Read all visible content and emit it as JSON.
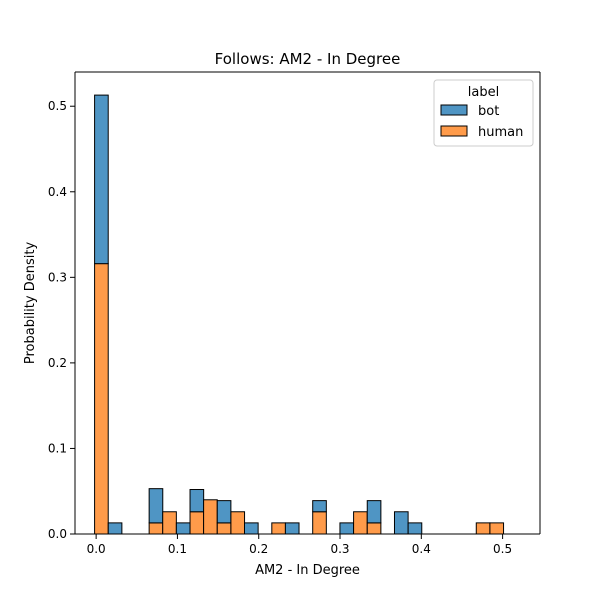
{
  "chart_data": {
    "type": "bar",
    "stacked": true,
    "title": "Follows: AM2 - In Degree",
    "xlabel": "AM2 - In Degree",
    "ylabel": "Probability Density",
    "xlim": [
      -0.026,
      0.546
    ],
    "ylim": [
      0,
      0.54
    ],
    "grid": false,
    "bin_width": 0.01677,
    "xticks": [
      0.0,
      0.1,
      0.2,
      0.3,
      0.4,
      0.5
    ],
    "xtick_labels": [
      "0.0",
      "0.1",
      "0.2",
      "0.3",
      "0.4",
      "0.5"
    ],
    "yticks": [
      0.0,
      0.1,
      0.2,
      0.3,
      0.4,
      0.5
    ],
    "ytick_labels": [
      "0.0",
      "0.1",
      "0.2",
      "0.3",
      "0.4",
      "0.5"
    ],
    "legend": {
      "title": "label",
      "placement": "top-right",
      "entries": [
        "bot",
        "human"
      ]
    },
    "bins_left": [
      -0.0019,
      0.0149,
      0.0316,
      0.0484,
      0.0652,
      0.0819,
      0.0987,
      0.1155,
      0.1322,
      0.149,
      0.1658,
      0.1825,
      0.1993,
      0.2161,
      0.2328,
      0.2496,
      0.2664,
      0.2831,
      0.2999,
      0.3167,
      0.3335,
      0.3502,
      0.367,
      0.3838,
      0.4005,
      0.4173,
      0.4341,
      0.4508,
      0.4676,
      0.4844,
      0.5011
    ],
    "series": [
      {
        "name": "human",
        "color": "#ff9b4a",
        "values": [
          0.316,
          0,
          0,
          0,
          0.013,
          0.026,
          0,
          0.026,
          0.04,
          0.013,
          0.026,
          0,
          0,
          0.013,
          0,
          0,
          0.026,
          0,
          0,
          0.026,
          0.013,
          0,
          0,
          0,
          0,
          0,
          0,
          0,
          0.013,
          0.013,
          0
        ]
      },
      {
        "name": "bot",
        "color": "#4f95c4",
        "values": [
          0.197,
          0.013,
          0,
          0,
          0.04,
          0,
          0.013,
          0.026,
          0,
          0.026,
          0,
          0.013,
          0,
          0,
          0.013,
          0,
          0.013,
          0,
          0.013,
          0,
          0.026,
          0,
          0.026,
          0.013,
          0,
          0,
          0,
          0,
          0,
          0,
          0
        ]
      }
    ]
  }
}
